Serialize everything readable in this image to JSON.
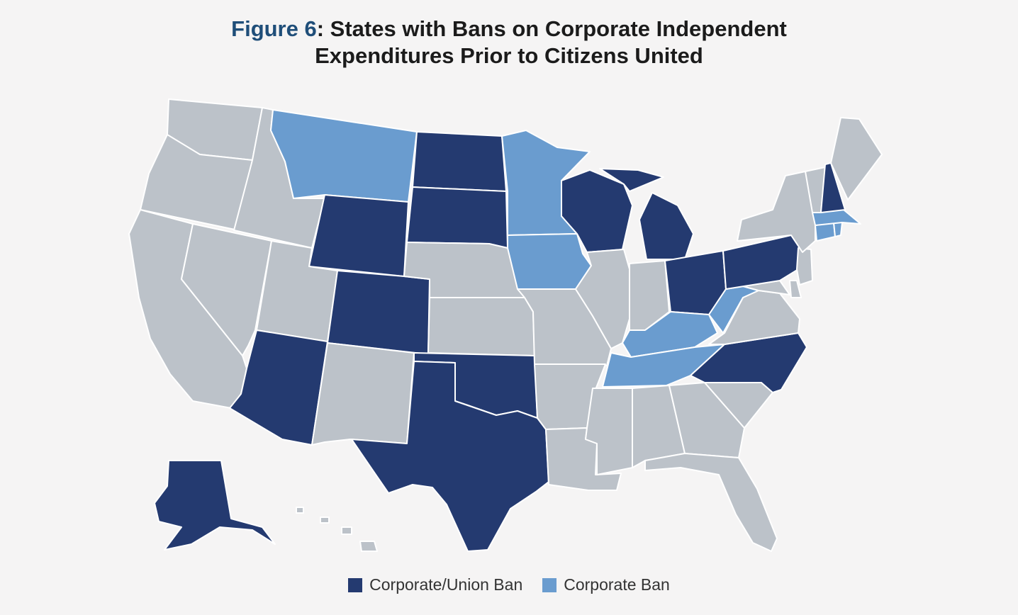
{
  "title": {
    "figure_label": "Figure 6",
    "text_line1": ": States with Bans on Corporate Independent",
    "text_line2": "Expenditures Prior to Citizens United"
  },
  "colors": {
    "corporate_union_ban": "#243a70",
    "corporate_ban": "#6a9ccf",
    "no_ban": "#bcc2c9",
    "background": "#f5f4f4",
    "figure_label": "#1f4e79"
  },
  "legend": [
    {
      "label": "Corporate/Union Ban",
      "category": "corporate_union_ban"
    },
    {
      "label": "Corporate Ban",
      "category": "corporate_ban"
    }
  ],
  "states": {
    "WA": "none",
    "OR": "none",
    "CA": "none",
    "ID": "none",
    "NV": "none",
    "MT": "corporate_ban",
    "WY": "corporate_union_ban",
    "UT": "none",
    "AZ": "corporate_union_ban",
    "CO": "corporate_union_ban",
    "NM": "none",
    "ND": "corporate_union_ban",
    "SD": "corporate_union_ban",
    "NE": "none",
    "KS": "none",
    "OK": "corporate_union_ban",
    "TX": "corporate_union_ban",
    "MN": "corporate_ban",
    "IA": "corporate_ban",
    "MO": "none",
    "AR": "none",
    "LA": "none",
    "WI": "corporate_union_ban",
    "IL": "none",
    "MI": "corporate_union_ban",
    "IN": "none",
    "OH": "corporate_union_ban",
    "KY": "corporate_ban",
    "TN": "corporate_ban",
    "MS": "none",
    "AL": "none",
    "GA": "none",
    "FL": "none",
    "SC": "none",
    "NC": "corporate_union_ban",
    "VA": "none",
    "WV": "corporate_ban",
    "MD": "none",
    "DE": "none",
    "PA": "corporate_union_ban",
    "NJ": "none",
    "NY": "none",
    "CT": "corporate_ban",
    "RI": "corporate_ban",
    "MA": "corporate_ban",
    "VT": "none",
    "NH": "corporate_union_ban",
    "ME": "none",
    "AK": "corporate_union_ban",
    "HI": "none"
  }
}
